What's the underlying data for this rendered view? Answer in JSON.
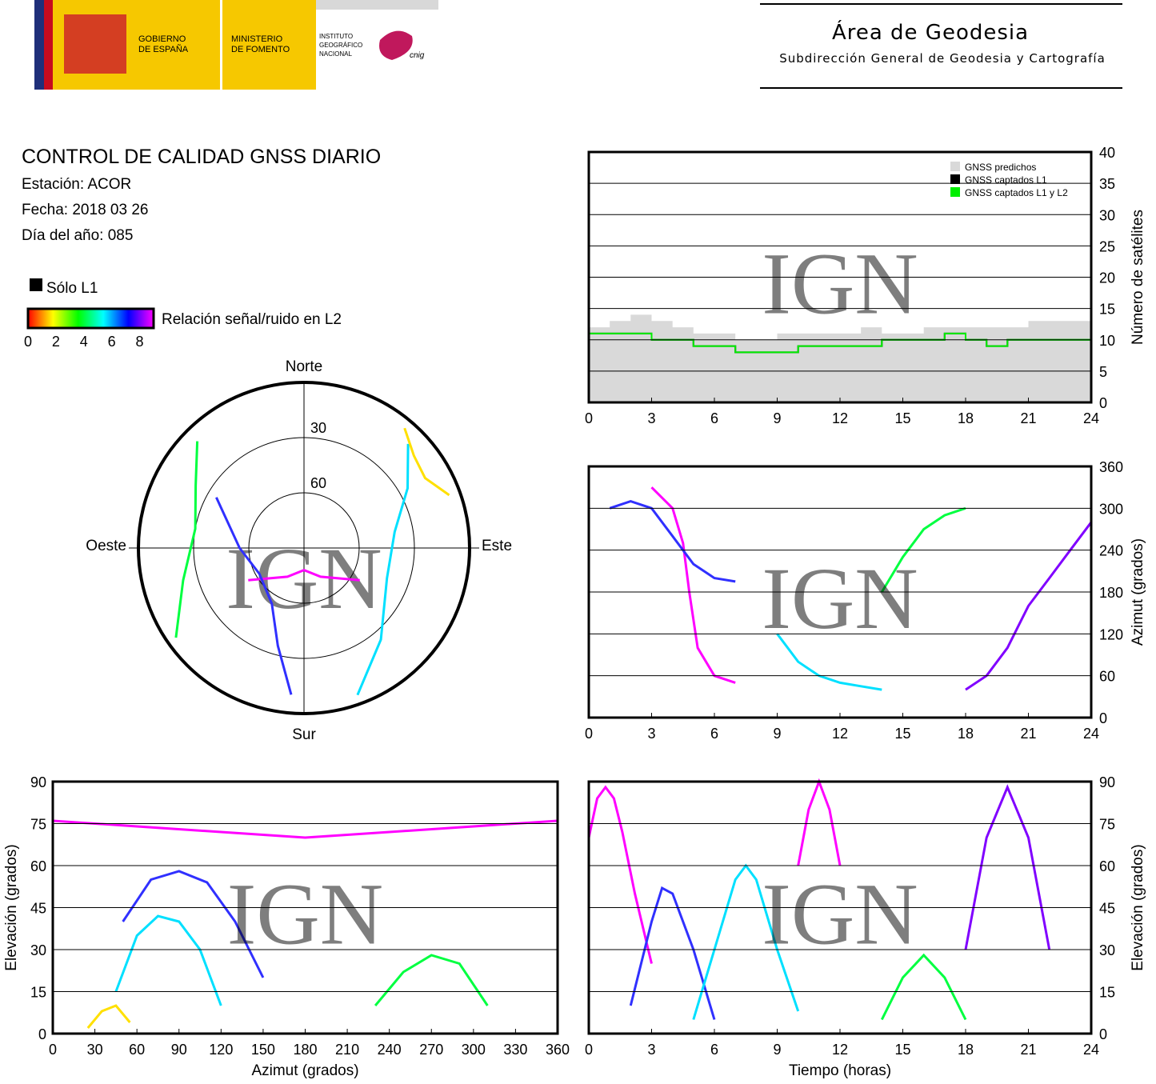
{
  "header": {
    "logo_gobierno": [
      "GOBIERNO",
      "DE ESPAÑA"
    ],
    "logo_ministerio": [
      "MINISTERIO",
      "DE FOMENTO"
    ],
    "logo_instituto": [
      "INSTITUTO",
      "GEOGRÁFICO",
      "NACIONAL"
    ],
    "logo_cnig": "cnig",
    "title": "Área de Geodesia",
    "subtitle": "Subdirección General de Geodesia y Cartografía"
  },
  "report": {
    "title": "CONTROL DE CALIDAD GNSS DIARIO",
    "station": "Estación: ACOR",
    "date": "Fecha: 2018 03 26",
    "day_of_year": "Día del año: 085",
    "legend_l1": "Sólo L1",
    "legend_l1_color": "#000000",
    "colorbar": {
      "label": "Relación señal/ruido en L2",
      "lim": [
        0,
        9
      ],
      "ticks": [
        0,
        2,
        4,
        6,
        8
      ],
      "colors": [
        "#ff0000",
        "#ffff00",
        "#00ff00",
        "#00ffff",
        "#0000ff",
        "#ff00ff"
      ]
    }
  },
  "watermark": "IGN",
  "chart_data": [
    {
      "type": "polar",
      "directions": {
        "north": "Norte",
        "south": "Sur",
        "east": "Este",
        "west": "Oeste"
      },
      "rlim": [
        0,
        90
      ],
      "rticks": [
        30,
        60
      ],
      "series": [
        {
          "color": "#ff00ff",
          "azimuth": [
            120,
            150,
            180,
            210,
            240
          ],
          "values": [
            55,
            72,
            78,
            72,
            55
          ]
        },
        {
          "color": "#3030ff",
          "azimuth": [
            300,
            270,
            240,
            210,
            195,
            185
          ],
          "values": [
            35,
            55,
            62,
            55,
            35,
            10
          ]
        },
        {
          "color": "#00e0ff",
          "azimuth": [
            45,
            60,
            80,
            110,
            140,
            160
          ],
          "values": [
            10,
            25,
            40,
            42,
            25,
            5
          ]
        },
        {
          "color": "#00ff40",
          "azimuth": [
            315,
            300,
            280,
            255,
            235
          ],
          "values": [
            8,
            22,
            30,
            22,
            5
          ]
        },
        {
          "color": "#ffe000",
          "azimuth": [
            40,
            50,
            60,
            70
          ],
          "values": [
            5,
            12,
            14,
            6
          ]
        }
      ]
    },
    {
      "type": "step",
      "x": [
        0,
        1,
        2,
        3,
        4,
        5,
        6,
        7,
        8,
        9,
        10,
        11,
        12,
        13,
        14,
        15,
        16,
        17,
        18,
        19,
        20,
        21,
        22,
        23,
        24
      ],
      "xlim": [
        0,
        24
      ],
      "xticks": [
        0,
        3,
        6,
        9,
        12,
        15,
        18,
        21,
        24
      ],
      "ylim": [
        0,
        40
      ],
      "yticks": [
        0,
        5,
        10,
        15,
        20,
        25,
        30,
        35,
        40
      ],
      "ylabel": "Número de satélites",
      "yaxis_side": "right",
      "grid": true,
      "legend": "upper right",
      "series": [
        {
          "name": "GNSS predichos",
          "color": "#d9d9d9",
          "fill": true,
          "values": [
            12,
            13,
            14,
            13,
            12,
            11,
            11,
            10,
            10,
            11,
            11,
            11,
            11,
            12,
            11,
            11,
            12,
            12,
            12,
            12,
            12,
            13,
            13,
            13,
            13
          ]
        },
        {
          "name": "GNSS captados L1",
          "color": "#000000",
          "values": [
            11,
            11,
            11,
            10,
            10,
            9,
            9,
            8,
            8,
            8,
            9,
            9,
            9,
            9,
            10,
            10,
            10,
            11,
            10,
            9,
            10,
            10,
            10,
            10,
            10
          ]
        },
        {
          "name": "GNSS captados L1 y L2",
          "color": "#00ee00",
          "values": [
            11,
            11,
            11,
            10,
            10,
            9,
            9,
            8,
            8,
            8,
            9,
            9,
            9,
            9,
            10,
            10,
            10,
            11,
            10,
            9,
            10,
            10,
            10,
            10,
            10
          ]
        }
      ]
    },
    {
      "type": "line",
      "xlim": [
        0,
        24
      ],
      "xticks": [
        0,
        3,
        6,
        9,
        12,
        15,
        18,
        21,
        24
      ],
      "ylim": [
        0,
        360
      ],
      "yticks": [
        0,
        60,
        120,
        180,
        240,
        300,
        360
      ],
      "ylabel": "Azimut (grados)",
      "yaxis_side": "right",
      "grid": true,
      "series": [
        {
          "color": "#ff00ff",
          "x": [
            3,
            4,
            4.5,
            4.8,
            5.2,
            6,
            7
          ],
          "values": [
            330,
            300,
            250,
            180,
            100,
            60,
            50
          ]
        },
        {
          "color": "#3030ff",
          "x": [
            1,
            2,
            3,
            4,
            5,
            6,
            7
          ],
          "values": [
            300,
            310,
            300,
            260,
            220,
            200,
            195
          ]
        },
        {
          "color": "#00e0ff",
          "x": [
            9,
            10,
            11,
            12,
            13,
            14
          ],
          "values": [
            120,
            80,
            60,
            50,
            45,
            40
          ]
        },
        {
          "color": "#00ff40",
          "x": [
            14,
            15,
            16,
            17,
            18
          ],
          "values": [
            180,
            230,
            270,
            290,
            300
          ]
        },
        {
          "color": "#8000ff",
          "x": [
            18,
            19,
            20,
            21,
            22,
            23,
            24
          ],
          "values": [
            40,
            60,
            100,
            160,
            200,
            240,
            280
          ]
        }
      ]
    },
    {
      "type": "line",
      "xlim": [
        0,
        360
      ],
      "xticks": [
        0,
        30,
        60,
        90,
        120,
        150,
        180,
        210,
        240,
        270,
        300,
        330,
        360
      ],
      "ylim": [
        0,
        90
      ],
      "yticks": [
        0,
        15,
        30,
        45,
        60,
        75,
        90
      ],
      "xlabel": "Azimut (grados)",
      "ylabel": "Elevación (grados)",
      "yaxis_side": "left",
      "grid": true,
      "series": [
        {
          "color": "#ff00ff",
          "x": [
            0,
            60,
            120,
            180,
            240,
            300,
            360
          ],
          "values": [
            76,
            74,
            72,
            70,
            72,
            74,
            76
          ]
        },
        {
          "color": "#3030ff",
          "x": [
            50,
            70,
            90,
            110,
            130,
            150
          ],
          "values": [
            40,
            55,
            58,
            54,
            40,
            20
          ]
        },
        {
          "color": "#00e0ff",
          "x": [
            45,
            60,
            75,
            90,
            105,
            120
          ],
          "values": [
            15,
            35,
            42,
            40,
            30,
            10
          ]
        },
        {
          "color": "#00ff40",
          "x": [
            230,
            250,
            270,
            290,
            310
          ],
          "values": [
            10,
            22,
            28,
            25,
            10
          ]
        },
        {
          "color": "#ffe000",
          "x": [
            25,
            35,
            45,
            55
          ],
          "values": [
            2,
            8,
            10,
            4
          ]
        }
      ]
    },
    {
      "type": "line",
      "xlim": [
        0,
        24
      ],
      "xticks": [
        0,
        3,
        6,
        9,
        12,
        15,
        18,
        21,
        24
      ],
      "ylim": [
        0,
        90
      ],
      "yticks": [
        0,
        15,
        30,
        45,
        60,
        75,
        90
      ],
      "xlabel": "Tiempo (horas)",
      "ylabel": "Elevación (grados)",
      "yaxis_side": "right",
      "grid": true,
      "series": [
        {
          "color": "#ff00ff",
          "x": [
            0,
            0.4,
            0.8,
            1.2,
            1.6,
            2.2,
            3
          ],
          "values": [
            70,
            84,
            88,
            84,
            72,
            50,
            25
          ]
        },
        {
          "color": "#3030ff",
          "x": [
            2,
            3,
            3.5,
            4,
            5,
            6
          ],
          "values": [
            10,
            40,
            52,
            50,
            30,
            5
          ]
        },
        {
          "color": "#00e0ff",
          "x": [
            5,
            6,
            7,
            7.5,
            8,
            9,
            10
          ],
          "values": [
            5,
            30,
            55,
            60,
            55,
            30,
            8
          ]
        },
        {
          "color": "#ff00ff",
          "x": [
            10,
            10.5,
            11,
            11.5,
            12
          ],
          "values": [
            60,
            80,
            90,
            80,
            60
          ]
        },
        {
          "color": "#00ff40",
          "x": [
            14,
            15,
            16,
            17,
            18
          ],
          "values": [
            5,
            20,
            28,
            20,
            5
          ]
        },
        {
          "color": "#8000ff",
          "x": [
            18,
            19,
            20,
            21,
            22
          ],
          "values": [
            30,
            70,
            88,
            70,
            30
          ]
        }
      ]
    }
  ]
}
